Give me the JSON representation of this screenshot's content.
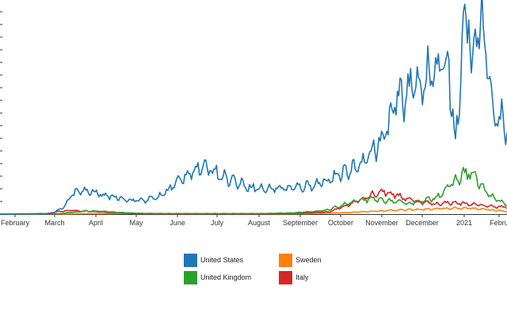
{
  "chart_data": {
    "type": "line",
    "title": "",
    "xlabel": "",
    "ylabel": "",
    "x_ticks": [
      "February",
      "March",
      "April",
      "May",
      "June",
      "July",
      "August",
      "September",
      "October",
      "November",
      "December",
      "2021",
      "Febru"
    ],
    "ylim": [
      0,
      300000
    ],
    "x_range_days": [
      0,
      384
    ],
    "series": [
      {
        "name": "United States",
        "color": "#1f77b4",
        "keyframes": [
          [
            0,
            0
          ],
          [
            40,
            1000
          ],
          [
            48,
            10000
          ],
          [
            55,
            30000
          ],
          [
            60,
            34000
          ],
          [
            70,
            33000
          ],
          [
            80,
            27000
          ],
          [
            90,
            25000
          ],
          [
            100,
            20000
          ],
          [
            110,
            21000
          ],
          [
            120,
            25000
          ],
          [
            130,
            40000
          ],
          [
            145,
            65000
          ],
          [
            160,
            68000
          ],
          [
            170,
            55000
          ],
          [
            180,
            47000
          ],
          [
            190,
            40000
          ],
          [
            200,
            37000
          ],
          [
            210,
            39000
          ],
          [
            220,
            38000
          ],
          [
            230,
            41000
          ],
          [
            240,
            45000
          ],
          [
            250,
            52000
          ],
          [
            260,
            60000
          ],
          [
            270,
            70000
          ],
          [
            280,
            90000
          ],
          [
            290,
            110000
          ],
          [
            300,
            165000
          ],
          [
            310,
            185000
          ],
          [
            320,
            200000
          ],
          [
            330,
            210000
          ],
          [
            340,
            225000
          ],
          [
            345,
            100000
          ],
          [
            350,
            240000
          ],
          [
            355,
            300000
          ],
          [
            358,
            200000
          ],
          [
            362,
            290000
          ],
          [
            365,
            280000
          ],
          [
            370,
            200000
          ],
          [
            375,
            145000
          ],
          [
            380,
            140000
          ],
          [
            384,
            130000
          ]
        ]
      },
      {
        "name": "United Kingdom",
        "color": "#2ca02c",
        "keyframes": [
          [
            0,
            0
          ],
          [
            45,
            500
          ],
          [
            55,
            3000
          ],
          [
            65,
            4500
          ],
          [
            75,
            4500
          ],
          [
            90,
            2500
          ],
          [
            110,
            1000
          ],
          [
            150,
            800
          ],
          [
            200,
            900
          ],
          [
            220,
            1800
          ],
          [
            240,
            4000
          ],
          [
            250,
            7000
          ],
          [
            260,
            14000
          ],
          [
            270,
            19000
          ],
          [
            280,
            22000
          ],
          [
            290,
            21000
          ],
          [
            300,
            18000
          ],
          [
            310,
            16000
          ],
          [
            320,
            19000
          ],
          [
            330,
            25000
          ],
          [
            340,
            40000
          ],
          [
            350,
            58000
          ],
          [
            355,
            62000
          ],
          [
            360,
            55000
          ],
          [
            365,
            40000
          ],
          [
            370,
            30000
          ],
          [
            375,
            22000
          ],
          [
            384,
            15000
          ]
        ]
      },
      {
        "name": "Sweden",
        "color": "#ff7f0e",
        "keyframes": [
          [
            0,
            0
          ],
          [
            50,
            300
          ],
          [
            70,
            700
          ],
          [
            100,
            1000
          ],
          [
            130,
            500
          ],
          [
            180,
            300
          ],
          [
            230,
            600
          ],
          [
            260,
            2000
          ],
          [
            280,
            4000
          ],
          [
            300,
            6000
          ],
          [
            320,
            7000
          ],
          [
            340,
            8500
          ],
          [
            355,
            9000
          ],
          [
            370,
            6500
          ],
          [
            384,
            4000
          ]
        ]
      },
      {
        "name": "Italy",
        "color": "#d62728",
        "keyframes": [
          [
            0,
            0
          ],
          [
            35,
            500
          ],
          [
            45,
            4000
          ],
          [
            55,
            5500
          ],
          [
            65,
            4500
          ],
          [
            80,
            3000
          ],
          [
            100,
            800
          ],
          [
            130,
            300
          ],
          [
            200,
            300
          ],
          [
            230,
            1500
          ],
          [
            250,
            3500
          ],
          [
            265,
            15000
          ],
          [
            280,
            28000
          ],
          [
            290,
            34000
          ],
          [
            300,
            28000
          ],
          [
            310,
            22000
          ],
          [
            320,
            18000
          ],
          [
            330,
            15000
          ],
          [
            340,
            17000
          ],
          [
            350,
            16000
          ],
          [
            360,
            14000
          ],
          [
            370,
            12000
          ],
          [
            384,
            10000
          ]
        ]
      }
    ]
  },
  "legend": {
    "items": [
      {
        "label": "United States",
        "color": "#1f77b4"
      },
      {
        "label": "Sweden",
        "color": "#ff7f0e"
      },
      {
        "label": "United Kingdom",
        "color": "#2ca02c"
      },
      {
        "label": "Italy",
        "color": "#d62728"
      }
    ]
  }
}
